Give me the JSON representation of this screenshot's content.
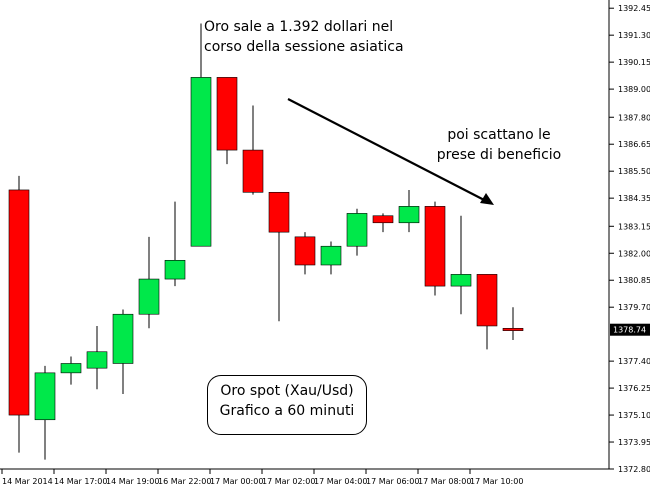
{
  "chart_data": {
    "type": "candlestick",
    "timeframe": "60 minuti",
    "ylim": [
      1372.8,
      1392.8
    ],
    "current_price": "1378.74",
    "y_ticks": [
      "1392.45",
      "1391.30",
      "1390.15",
      "1389.00",
      "1387.80",
      "1386.65",
      "1385.50",
      "1384.35",
      "1383.15",
      "1382.00",
      "1380.85",
      "1379.70",
      "1378.74",
      "1377.40",
      "1376.25",
      "1375.10",
      "1373.95",
      "1372.80"
    ],
    "x_ticks": [
      "14 Mar 2014",
      "14 Mar 17:00",
      "14 Mar 19:00",
      "16 Mar 22:00",
      "17 Mar 00:00",
      "17 Mar 02:00",
      "17 Mar 04:00",
      "17 Mar 06:00",
      "17 Mar 08:00",
      "17 Mar 10:00"
    ],
    "candles": [
      {
        "o": 1384.7,
        "h": 1385.3,
        "l": 1373.5,
        "c": 1375.1
      },
      {
        "o": 1374.9,
        "h": 1377.2,
        "l": 1373.2,
        "c": 1376.9
      },
      {
        "o": 1376.9,
        "h": 1377.6,
        "l": 1376.4,
        "c": 1377.3
      },
      {
        "o": 1377.1,
        "h": 1378.9,
        "l": 1376.2,
        "c": 1377.8
      },
      {
        "o": 1377.3,
        "h": 1379.6,
        "l": 1376.0,
        "c": 1379.4
      },
      {
        "o": 1379.4,
        "h": 1382.7,
        "l": 1378.8,
        "c": 1380.9
      },
      {
        "o": 1380.9,
        "h": 1384.2,
        "l": 1380.6,
        "c": 1381.7
      },
      {
        "o": 1382.3,
        "h": 1391.8,
        "l": 1382.3,
        "c": 1389.5
      },
      {
        "o": 1389.5,
        "h": 1389.5,
        "l": 1385.8,
        "c": 1386.4
      },
      {
        "o": 1386.4,
        "h": 1388.3,
        "l": 1384.5,
        "c": 1384.6
      },
      {
        "o": 1384.6,
        "h": 1384.6,
        "l": 1379.1,
        "c": 1382.9
      },
      {
        "o": 1382.7,
        "h": 1382.9,
        "l": 1381.1,
        "c": 1381.5
      },
      {
        "o": 1381.5,
        "h": 1382.5,
        "l": 1381.1,
        "c": 1382.3
      },
      {
        "o": 1382.3,
        "h": 1383.9,
        "l": 1381.9,
        "c": 1383.7
      },
      {
        "o": 1383.6,
        "h": 1383.7,
        "l": 1382.9,
        "c": 1383.3
      },
      {
        "o": 1383.3,
        "h": 1384.7,
        "l": 1382.9,
        "c": 1384.0
      },
      {
        "o": 1384.0,
        "h": 1384.2,
        "l": 1380.2,
        "c": 1380.6
      },
      {
        "o": 1380.6,
        "h": 1383.6,
        "l": 1379.4,
        "c": 1381.1
      },
      {
        "o": 1381.1,
        "h": 1381.1,
        "l": 1377.9,
        "c": 1378.9
      },
      {
        "o": 1378.8,
        "h": 1379.7,
        "l": 1378.3,
        "c": 1378.7
      }
    ],
    "annotations": {
      "top": [
        "Oro sale a 1.392 dollari nel",
        "corso della sessione asiatica"
      ],
      "right": [
        "poi scattano le",
        "prese di beneficio"
      ],
      "box": [
        "Oro spot (Xau/Usd)",
        "Grafico a 60 minuti"
      ]
    },
    "colors": {
      "up": "#00e84a",
      "down": "#ff0000",
      "wick": "#000000",
      "grid": "none",
      "axis": "#000000"
    }
  }
}
